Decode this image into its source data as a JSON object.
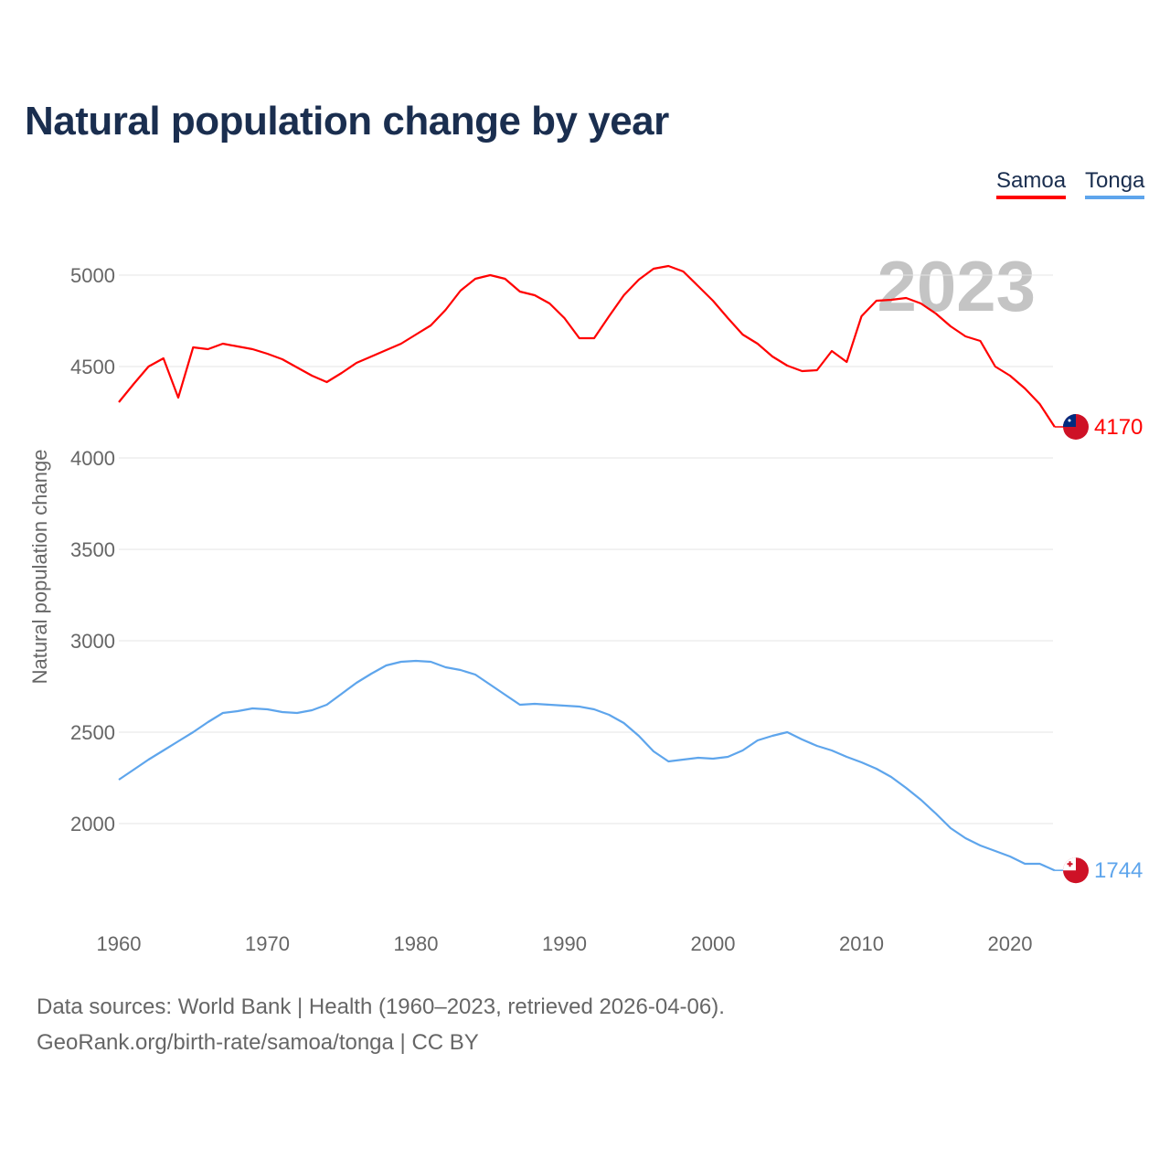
{
  "title": "Natural population change by year",
  "legend": [
    {
      "label": "Samoa",
      "color": "#ff0000"
    },
    {
      "label": "Tonga",
      "color": "#5ea5ec"
    }
  ],
  "footer": {
    "line1": "Data sources: World Bank | Health (1960–2023, retrieved 2026-04-06).",
    "line2": "GeoRank.org/birth-rate/samoa/tonga | CC BY"
  },
  "chart_data": {
    "type": "line",
    "title": "Natural population change by year",
    "xlabel": "",
    "ylabel": "Natural population change",
    "year_watermark": "2023",
    "xlim": [
      1960,
      2023
    ],
    "ylim": [
      1700,
      5100
    ],
    "xticks": [
      1960,
      1970,
      1980,
      1990,
      2000,
      2010,
      2020
    ],
    "yticks": [
      2000,
      2500,
      3000,
      3500,
      4000,
      4500,
      5000
    ],
    "grid": true,
    "legend_position": "top-right",
    "x_start": 1960,
    "series": [
      {
        "name": "Samoa",
        "color": "#ff0000",
        "end_label": "4170",
        "flag": "samoa-flag",
        "values": [
          4305,
          4405,
          4500,
          4545,
          4330,
          4605,
          4595,
          4625,
          4610,
          4595,
          4570,
          4540,
          4495,
          4450,
          4415,
          4465,
          4520,
          4555,
          4590,
          4625,
          4675,
          4725,
          4810,
          4915,
          4980,
          5000,
          4980,
          4910,
          4890,
          4845,
          4765,
          4655,
          4655,
          4775,
          4890,
          4975,
          5035,
          5050,
          5020,
          4940,
          4860,
          4765,
          4675,
          4625,
          4555,
          4505,
          4475,
          4480,
          4585,
          4525,
          4775,
          4860,
          4865,
          4875,
          4845,
          4790,
          4720,
          4665,
          4640,
          4500,
          4450,
          4380,
          4295,
          4170
        ]
      },
      {
        "name": "Tonga",
        "color": "#5ea5ec",
        "end_label": "1744",
        "flag": "tonga-flag",
        "values": [
          2240,
          2295,
          2350,
          2400,
          2450,
          2500,
          2555,
          2605,
          2615,
          2630,
          2625,
          2610,
          2605,
          2620,
          2650,
          2710,
          2770,
          2820,
          2865,
          2885,
          2890,
          2885,
          2855,
          2840,
          2815,
          2760,
          2705,
          2650,
          2655,
          2650,
          2645,
          2640,
          2625,
          2595,
          2550,
          2480,
          2395,
          2340,
          2350,
          2360,
          2355,
          2365,
          2400,
          2455,
          2480,
          2500,
          2460,
          2425,
          2400,
          2365,
          2335,
          2300,
          2255,
          2195,
          2130,
          2055,
          1975,
          1920,
          1880,
          1850,
          1820,
          1780,
          1780,
          1744
        ]
      }
    ]
  }
}
